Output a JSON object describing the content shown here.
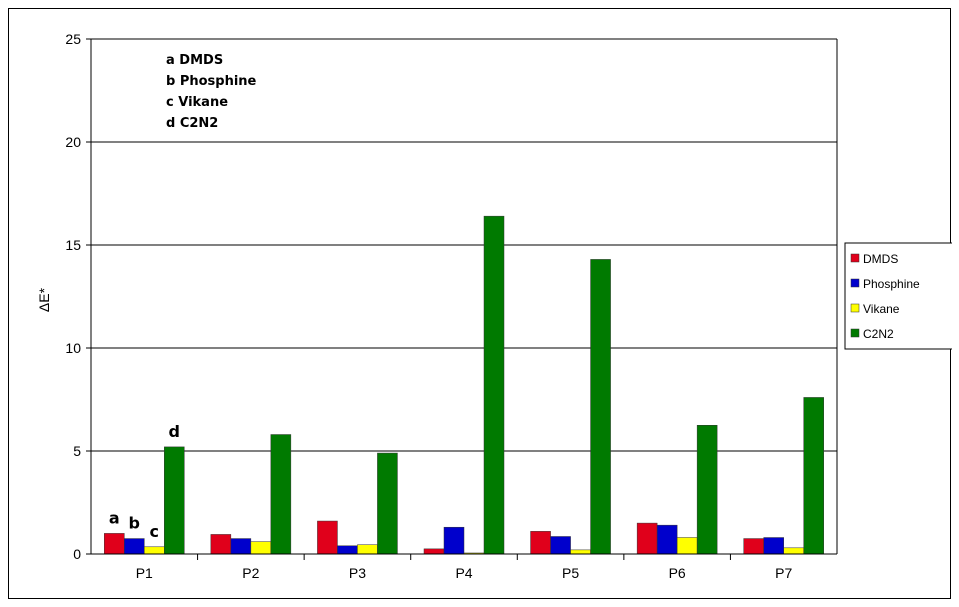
{
  "chart_data": {
    "type": "bar",
    "categories": [
      "P1",
      "P2",
      "P3",
      "P4",
      "P5",
      "P6",
      "P7"
    ],
    "series": [
      {
        "name": "DMDS",
        "color": "#e0001b",
        "values": [
          1.0,
          0.95,
          1.6,
          0.25,
          1.1,
          1.5,
          0.75
        ]
      },
      {
        "name": "Phosphine",
        "color": "#0000cc",
        "values": [
          0.75,
          0.75,
          0.4,
          1.3,
          0.85,
          1.4,
          0.8
        ]
      },
      {
        "name": "Vikane",
        "color": "#ffff00",
        "values": [
          0.35,
          0.6,
          0.45,
          0.05,
          0.2,
          0.8,
          0.3
        ]
      },
      {
        "name": "C2N2",
        "color": "#007a00",
        "values": [
          5.2,
          5.8,
          4.9,
          16.4,
          14.3,
          6.25,
          7.6
        ]
      }
    ],
    "ylabel": "ΔE*",
    "ylim": [
      0,
      25
    ],
    "yticks": [
      "0",
      "5",
      "10",
      "15",
      "20",
      "25"
    ],
    "grid": true,
    "legend_position": "right",
    "annotation_lines": [
      "a  DMDS",
      "b  Phosphine",
      "c  Vikane",
      "d  C2N2"
    ],
    "bar_letters": [
      "a",
      "b",
      "c",
      "d"
    ]
  }
}
